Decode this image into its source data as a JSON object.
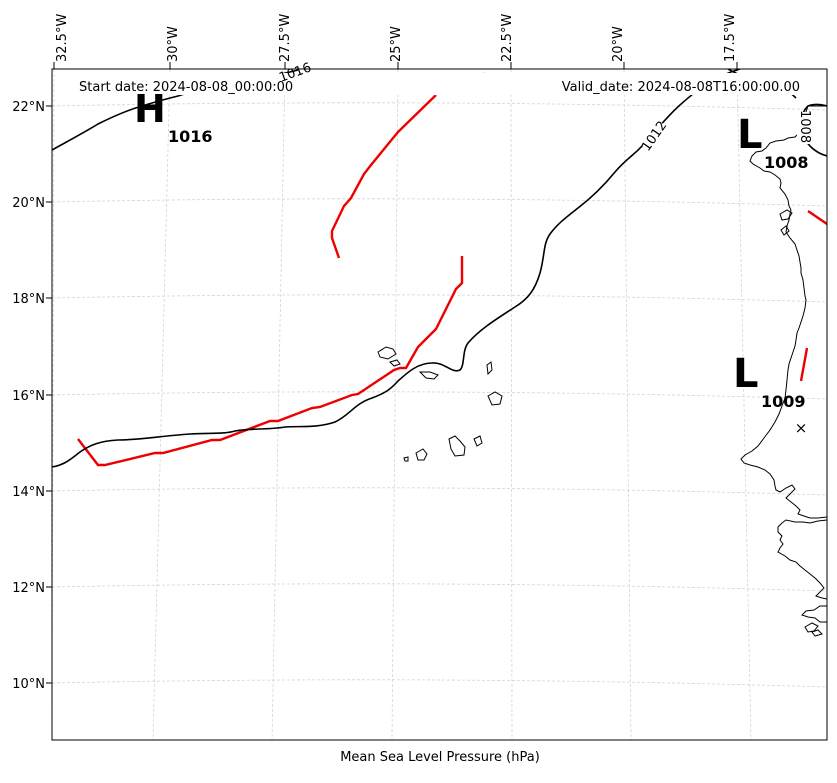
{
  "header": {
    "start_date": "Start date: 2024-08-08_00:00:00",
    "valid_date": "Valid_date: 2024-08-08T16:00:00.00"
  },
  "footer": {
    "xlabel": "Mean Sea Level Pressure (hPa)"
  },
  "axes": {
    "lon_labels": [
      "32.5°W",
      "30°W",
      "27.5°W",
      "25°W",
      "22.5°W",
      "20°W",
      "17.5°W"
    ],
    "lat_labels": [
      "22°N",
      "20°N",
      "18°N",
      "16°N",
      "14°N",
      "12°N",
      "10°N"
    ]
  },
  "systems": [
    {
      "type": "H",
      "value": "1016",
      "lon": -30.2,
      "lat": 21.9
    },
    {
      "type": "L",
      "value": "1008",
      "lon": -17.0,
      "lat": 21.4
    },
    {
      "type": "L",
      "value": "1009",
      "lon": -17.2,
      "lat": 16.5
    }
  ],
  "isobars": [
    {
      "value": "1016",
      "label": "1016",
      "color": "#000000"
    },
    {
      "value": "1012",
      "label": "1012",
      "color": "#000000"
    },
    {
      "value": "1008",
      "label": "1008",
      "color": "#000000"
    }
  ],
  "colors": {
    "isobar": "#000000",
    "trough": "#ee0000",
    "coast": "#000000",
    "grid": "#cccccc"
  },
  "features": {
    "marker": "×"
  }
}
